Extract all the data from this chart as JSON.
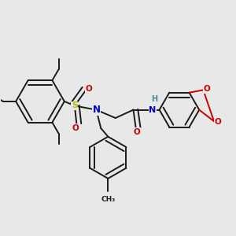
{
  "background_color": "#e8e8e8",
  "bond_color": "#1a1a1a",
  "atom_colors": {
    "N": "#0000cc",
    "O": "#cc0000",
    "S": "#b8b800",
    "H": "#4a8a8a",
    "C": "#1a1a1a"
  },
  "figsize": [
    3.0,
    3.0
  ],
  "dpi": 100,
  "lw": 1.4
}
